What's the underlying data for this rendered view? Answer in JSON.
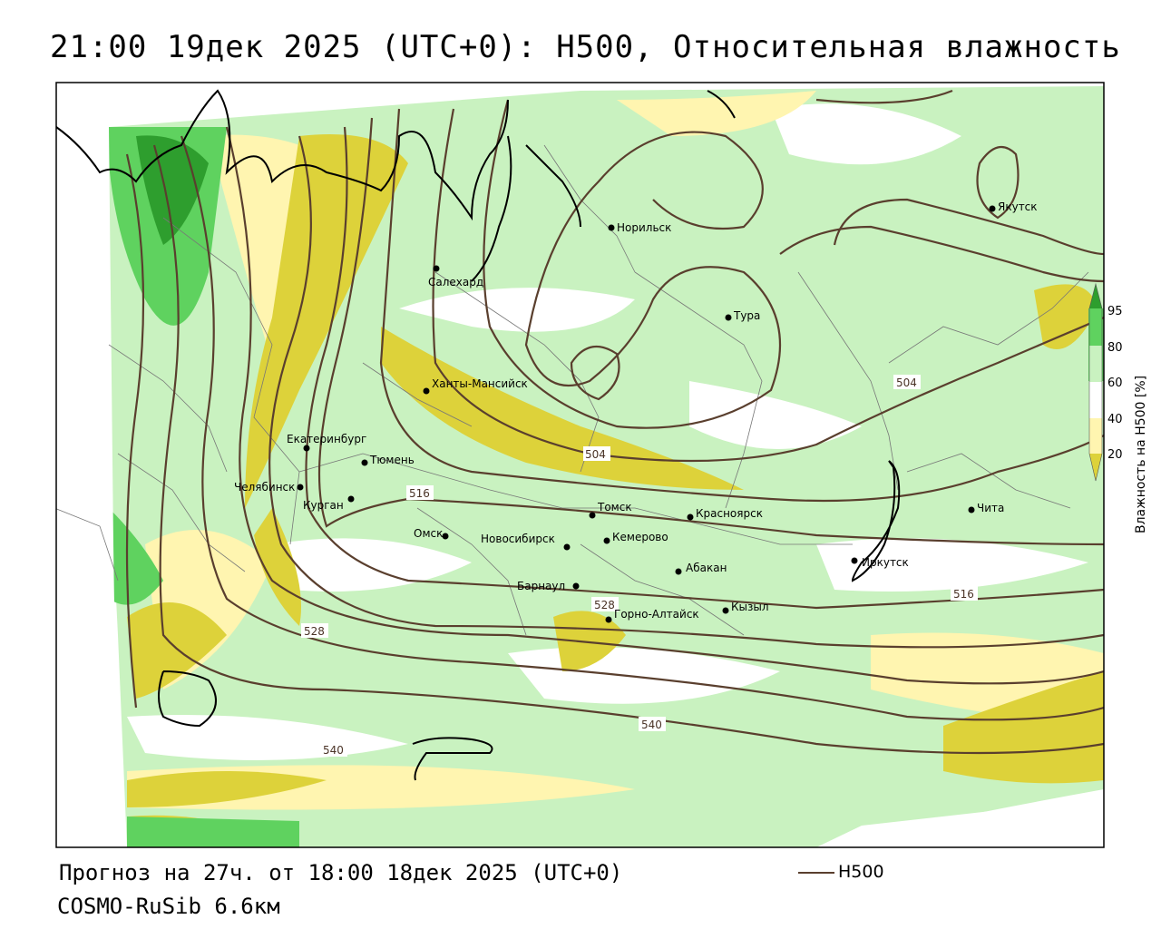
{
  "title": "21:00 19дек 2025 (UTC+0): H500, Относительная влажность",
  "footer": {
    "forecast": "Прогноз на 27ч. от 18:00 18дек 2025 (UTC+0)",
    "model": "COSMO-RuSib 6.6км",
    "legend_h500": "H500"
  },
  "colorbar": {
    "title": "Влажность на H500 [%]",
    "ticks": [
      "95",
      "80",
      "60",
      "40",
      "20"
    ],
    "colors": {
      "gt95": "#2e9e2e",
      "80_95": "#5fd25f",
      "60_80": "#c9f2c0",
      "40_60": "#ffffff",
      "20_40": "#fff5b0",
      "lt20": "#ddd23a"
    }
  },
  "contour_labels": {
    "l504a": "504",
    "l504b": "504",
    "l516a": "516",
    "l516b": "516",
    "l528a": "528",
    "l528b": "528",
    "l540a": "540",
    "l540b": "540"
  },
  "cities": [
    {
      "name": "Салехард"
    },
    {
      "name": "Норильск"
    },
    {
      "name": "Якутск"
    },
    {
      "name": "Тура"
    },
    {
      "name": "Ханты-Мансийск"
    },
    {
      "name": "Екатеринбург"
    },
    {
      "name": "Тюмень"
    },
    {
      "name": "Челябинск"
    },
    {
      "name": "Курган"
    },
    {
      "name": "Омск"
    },
    {
      "name": "Новосибирск"
    },
    {
      "name": "Томск"
    },
    {
      "name": "Кемерово"
    },
    {
      "name": "Красноярск"
    },
    {
      "name": "Абакан"
    },
    {
      "name": "Барнаул"
    },
    {
      "name": "Горно-Алтайск"
    },
    {
      "name": "Кызыл"
    },
    {
      "name": "Иркутск"
    },
    {
      "name": "Чита"
    }
  ],
  "colors": {
    "contour": "#5a3f2e",
    "coast": "#000000",
    "border": "#777777"
  }
}
